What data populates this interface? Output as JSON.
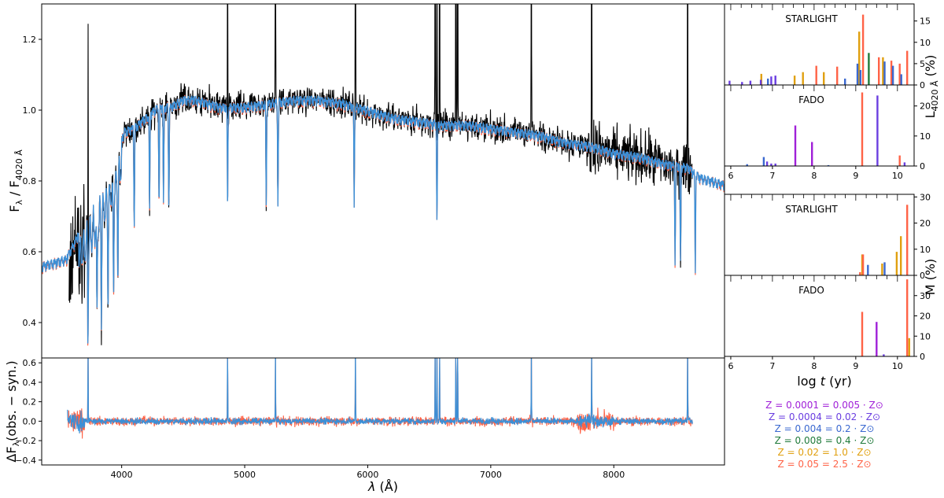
{
  "chart_data": [
    {
      "id": "spectrum",
      "type": "line",
      "ylabel": "F_λ / F_4020 Å",
      "xlim": [
        3350,
        8900
      ],
      "ylim": [
        0.3,
        1.3
      ],
      "yticks": [
        0.4,
        0.6,
        0.8,
        1.0,
        1.2
      ],
      "ytick_labels": [
        "0.4",
        "0.6",
        "0.8",
        "1.0",
        "1.2"
      ],
      "series": [
        {
          "role": "observed",
          "color": "#000000"
        },
        {
          "role": "fit-fado",
          "color": "#ff6347"
        },
        {
          "role": "fit-starlight",
          "color": "#3c8fd6"
        }
      ],
      "continuum": {
        "x": [
          3350,
          3450,
          3550,
          3650,
          3750,
          3850,
          3950,
          4020,
          4100,
          4200,
          4300,
          4400,
          4500,
          4600,
          4700,
          4800,
          4900,
          5000,
          5200,
          5400,
          5600,
          5800,
          6000,
          6200,
          6400,
          6600,
          6800,
          7000,
          7200,
          7400,
          7600,
          7800,
          8000,
          8200,
          8400,
          8600,
          8700,
          8800,
          8900
        ],
        "y": [
          0.57,
          0.58,
          0.59,
          0.66,
          0.72,
          0.79,
          0.86,
          0.95,
          0.96,
          0.99,
          1.02,
          1.02,
          1.04,
          1.04,
          1.03,
          1.02,
          1.02,
          1.02,
          1.03,
          1.04,
          1.04,
          1.03,
          1.01,
          0.99,
          0.98,
          0.97,
          0.97,
          0.96,
          0.95,
          0.94,
          0.92,
          0.91,
          0.89,
          0.88,
          0.86,
          0.85,
          0.82,
          0.81,
          0.8
        ]
      },
      "absorption_lines": [
        3726,
        3799,
        3835,
        3889,
        3934,
        3969,
        4102,
        4227,
        4304,
        4340,
        4383,
        4861,
        5175,
        5270,
        5890,
        6563,
        8498,
        8542,
        8662
      ],
      "emission_lines": [
        3727,
        4861,
        5250,
        5900,
        6548,
        6563,
        6584,
        6716,
        6731,
        7330,
        7820,
        8600
      ]
    },
    {
      "id": "residual",
      "type": "line",
      "xlabel": "λ (Å)",
      "ylabel": "ΔF_λ(obs. − syn.)",
      "xlim": [
        3350,
        8900
      ],
      "ylim": [
        -0.45,
        0.65
      ],
      "xticks": [
        4000,
        5000,
        6000,
        7000,
        8000
      ],
      "xtick_labels": [
        "4000",
        "5000",
        "6000",
        "7000",
        "8000"
      ],
      "yticks": [
        -0.4,
        -0.2,
        0.0,
        0.2,
        0.4,
        0.6
      ],
      "ytick_labels": [
        "−0.4",
        "−0.2",
        "0.0",
        "0.2",
        "0.4",
        "0.6"
      ],
      "series": [
        {
          "role": "fado-residual",
          "color": "#ff6347"
        },
        {
          "role": "starlight-residual",
          "color": "#3c8fd6"
        }
      ]
    },
    {
      "id": "light-starlight",
      "type": "bar",
      "title": "STARLIGHT",
      "xlim": [
        5.85,
        10.4
      ],
      "ylim": [
        0,
        19
      ],
      "yticks": [
        0,
        5,
        10,
        15
      ],
      "ytick_labels": [
        "0",
        "5",
        "10",
        "15"
      ],
      "bars": [
        {
          "x": 6.0,
          "z": 1,
          "v": 1.0
        },
        {
          "x": 6.3,
          "z": 1,
          "v": 0.7
        },
        {
          "x": 6.5,
          "z": 1,
          "v": 1.0
        },
        {
          "x": 6.7,
          "z": 4,
          "v": 2.6
        },
        {
          "x": 6.75,
          "z": 1,
          "v": 1.2
        },
        {
          "x": 6.9,
          "z": 2,
          "v": 1.5
        },
        {
          "x": 7.0,
          "z": 1,
          "v": 2.0
        },
        {
          "x": 7.1,
          "z": 1,
          "v": 2.2
        },
        {
          "x": 7.5,
          "z": 4,
          "v": 2.2
        },
        {
          "x": 7.7,
          "z": 4,
          "v": 3.0
        },
        {
          "x": 8.0,
          "z": 5,
          "v": 4.5
        },
        {
          "x": 8.2,
          "z": 4,
          "v": 3.0
        },
        {
          "x": 8.5,
          "z": 5,
          "v": 4.3
        },
        {
          "x": 8.75,
          "z": 2,
          "v": 1.5
        },
        {
          "x": 9.05,
          "z": 4,
          "v": 12.5
        },
        {
          "x": 9.05,
          "z": 2,
          "v": 5.0
        },
        {
          "x": 9.12,
          "z": 5,
          "v": 16.5
        },
        {
          "x": 9.12,
          "z": 2,
          "v": 3.5
        },
        {
          "x": 9.3,
          "z": 3,
          "v": 7.5
        },
        {
          "x": 9.5,
          "z": 5,
          "v": 6.5
        },
        {
          "x": 9.62,
          "z": 4,
          "v": 6.5
        },
        {
          "x": 9.7,
          "z": 2,
          "v": 5.5
        },
        {
          "x": 9.8,
          "z": 5,
          "v": 5.7
        },
        {
          "x": 9.9,
          "z": 2,
          "v": 4.5
        },
        {
          "x": 10.0,
          "z": 5,
          "v": 5.0
        },
        {
          "x": 10.1,
          "z": 2,
          "v": 2.5
        },
        {
          "x": 10.18,
          "z": 5,
          "v": 8.0
        }
      ]
    },
    {
      "id": "light-fado",
      "type": "bar",
      "title": "FADO",
      "xlim": [
        5.85,
        10.4
      ],
      "ylim": [
        0,
        27
      ],
      "yticks": [
        0,
        10,
        20
      ],
      "ytick_labels": [
        "0",
        "10",
        "20"
      ],
      "xticks": [
        6,
        7,
        8,
        9,
        10
      ],
      "xtick_labels": [
        "6",
        "7",
        "8",
        "9",
        "10"
      ],
      "bars": [
        {
          "x": 6.4,
          "z": 2,
          "v": 0.6
        },
        {
          "x": 6.8,
          "z": 2,
          "v": 3.0
        },
        {
          "x": 6.9,
          "z": 1,
          "v": 1.5
        },
        {
          "x": 7.0,
          "z": 1,
          "v": 0.8
        },
        {
          "x": 7.1,
          "z": 1,
          "v": 0.8
        },
        {
          "x": 7.6,
          "z": 0,
          "v": 13.5
        },
        {
          "x": 8.0,
          "z": 0,
          "v": 8.0
        },
        {
          "x": 8.35,
          "z": 2,
          "v": 0.3
        },
        {
          "x": 9.1,
          "z": 5,
          "v": 24.5
        },
        {
          "x": 9.55,
          "z": 1,
          "v": 23.5
        },
        {
          "x": 10.0,
          "z": 5,
          "v": 3.5
        },
        {
          "x": 10.2,
          "z": 1,
          "v": 1.2
        }
      ]
    },
    {
      "id": "mass-starlight",
      "type": "bar",
      "title": "STARLIGHT",
      "xlim": [
        5.85,
        10.4
      ],
      "ylim": [
        0,
        31
      ],
      "yticks": [
        0,
        10,
        20,
        30
      ],
      "ytick_labels": [
        "0",
        "10",
        "20",
        "30"
      ],
      "bars": [
        {
          "x": 9.05,
          "z": 5,
          "v": 1.2
        },
        {
          "x": 9.12,
          "z": 4,
          "v": 8.0
        },
        {
          "x": 9.12,
          "z": 5,
          "v": 8.0
        },
        {
          "x": 9.3,
          "z": 2,
          "v": 4.0
        },
        {
          "x": 9.6,
          "z": 4,
          "v": 4.5
        },
        {
          "x": 9.7,
          "z": 2,
          "v": 5.0
        },
        {
          "x": 9.95,
          "z": 4,
          "v": 9.0
        },
        {
          "x": 10.05,
          "z": 4,
          "v": 15.0
        },
        {
          "x": 10.18,
          "z": 5,
          "v": 27.0
        }
      ]
    },
    {
      "id": "mass-fado",
      "type": "bar",
      "title": "FADO",
      "xlim": [
        5.85,
        10.4
      ],
      "ylim": [
        0,
        40
      ],
      "yticks": [
        0,
        10,
        20,
        30
      ],
      "ytick_labels": [
        "0",
        "10",
        "20",
        "30"
      ],
      "xticks": [
        6,
        7,
        8,
        9,
        10
      ],
      "xtick_labels": [
        "6",
        "7",
        "8",
        "9",
        "10"
      ],
      "xlabel": "log t (yr)",
      "bars": [
        {
          "x": 9.1,
          "z": 5,
          "v": 22.0
        },
        {
          "x": 9.55,
          "z": 0,
          "v": 17.0
        },
        {
          "x": 10.18,
          "z": 5,
          "v": 38.0
        },
        {
          "x": 10.25,
          "z": 4,
          "v": 9.0
        },
        {
          "x": 9.7,
          "z": 1,
          "v": 1.0
        }
      ]
    }
  ],
  "right_axis_labels": {
    "light": "L_4020 Å (%)",
    "mass": "M (%)"
  },
  "metallicity_colors": [
    "#a020d8",
    "#6a3ee0",
    "#3a68d0",
    "#1f7a3a",
    "#e0a010",
    "#ff6347"
  ],
  "legend": [
    "Z = 0.0001 = 0.005 · Z⊙",
    "Z = 0.0004 = 0.02 · Z⊙",
    "Z = 0.004 = 0.2 · Z⊙",
    "Z = 0.008 = 0.4 · Z⊙",
    "Z = 0.02 = 1.0 · Z⊙",
    "Z = 0.05 = 2.5 · Z⊙"
  ]
}
